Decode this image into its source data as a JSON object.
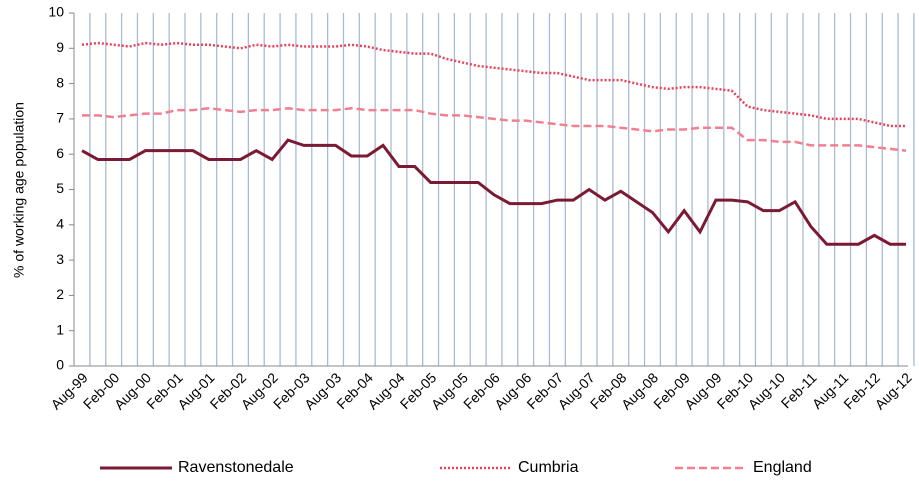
{
  "chart_data": {
    "type": "line",
    "y_label": "% of working age population",
    "categories": [
      "Aug-99",
      null,
      "Feb-00",
      null,
      "Aug-00",
      null,
      "Feb-01",
      null,
      "Aug-01",
      null,
      "Feb-02",
      null,
      "Aug-02",
      null,
      "Feb-03",
      null,
      "Aug-03",
      null,
      "Feb-04",
      null,
      "Aug-04",
      null,
      "Feb-05",
      null,
      "Aug-05",
      null,
      "Feb-06",
      null,
      "Aug-06",
      null,
      "Feb-07",
      null,
      "Aug-07",
      null,
      "Feb-08",
      null,
      "Aug-08",
      null,
      "Feb-09",
      null,
      "Aug-09",
      null,
      "Feb-10",
      null,
      "Aug-10",
      null,
      "Feb-11",
      null,
      "Aug-11",
      null,
      "Feb-12",
      null,
      "Aug-12"
    ],
    "series": [
      {
        "name": "Ravenstonedale",
        "color": "#7b1a33",
        "dash": "solid",
        "values": [
          6.1,
          5.85,
          5.85,
          5.85,
          6.1,
          6.1,
          6.1,
          6.1,
          5.85,
          5.85,
          5.85,
          6.1,
          5.85,
          6.4,
          6.25,
          6.25,
          6.25,
          5.95,
          5.95,
          6.25,
          5.65,
          5.65,
          5.2,
          5.2,
          5.2,
          5.2,
          4.85,
          4.6,
          4.6,
          4.6,
          4.7,
          4.7,
          5.0,
          4.7,
          4.95,
          4.65,
          4.35,
          3.8,
          4.4,
          3.8,
          4.7,
          4.7,
          4.65,
          4.4,
          4.4,
          4.65,
          3.95,
          3.45,
          3.45,
          3.45,
          3.7,
          3.45,
          3.45
        ]
      },
      {
        "name": "Cumbria",
        "color": "#e8425a",
        "dash": "dotted",
        "values": [
          9.1,
          9.15,
          9.1,
          9.05,
          9.15,
          9.1,
          9.15,
          9.1,
          9.1,
          9.05,
          9.0,
          9.1,
          9.05,
          9.1,
          9.05,
          9.05,
          9.05,
          9.1,
          9.05,
          8.95,
          8.9,
          8.85,
          8.85,
          8.7,
          8.6,
          8.5,
          8.45,
          8.4,
          8.35,
          8.3,
          8.3,
          8.2,
          8.1,
          8.1,
          8.1,
          8.0,
          7.9,
          7.85,
          7.9,
          7.9,
          7.85,
          7.8,
          7.35,
          7.25,
          7.2,
          7.15,
          7.1,
          7.0,
          7.0,
          7.0,
          6.9,
          6.8,
          6.8
        ]
      },
      {
        "name": "England",
        "color": "#f08090",
        "dash": "dashed",
        "values": [
          7.1,
          7.1,
          7.05,
          7.1,
          7.15,
          7.15,
          7.25,
          7.25,
          7.3,
          7.25,
          7.2,
          7.25,
          7.25,
          7.3,
          7.25,
          7.25,
          7.25,
          7.3,
          7.25,
          7.25,
          7.25,
          7.25,
          7.15,
          7.1,
          7.1,
          7.05,
          7.0,
          6.95,
          6.95,
          6.9,
          6.85,
          6.8,
          6.8,
          6.8,
          6.75,
          6.7,
          6.65,
          6.7,
          6.7,
          6.75,
          6.75,
          6.75,
          6.4,
          6.4,
          6.35,
          6.35,
          6.25,
          6.25,
          6.25,
          6.25,
          6.2,
          6.15,
          6.1
        ]
      }
    ],
    "ylim": [
      0,
      10
    ],
    "yticks": [
      0,
      1,
      2,
      3,
      4,
      5,
      6,
      7,
      8,
      9,
      10
    ],
    "x_grid": true
  }
}
